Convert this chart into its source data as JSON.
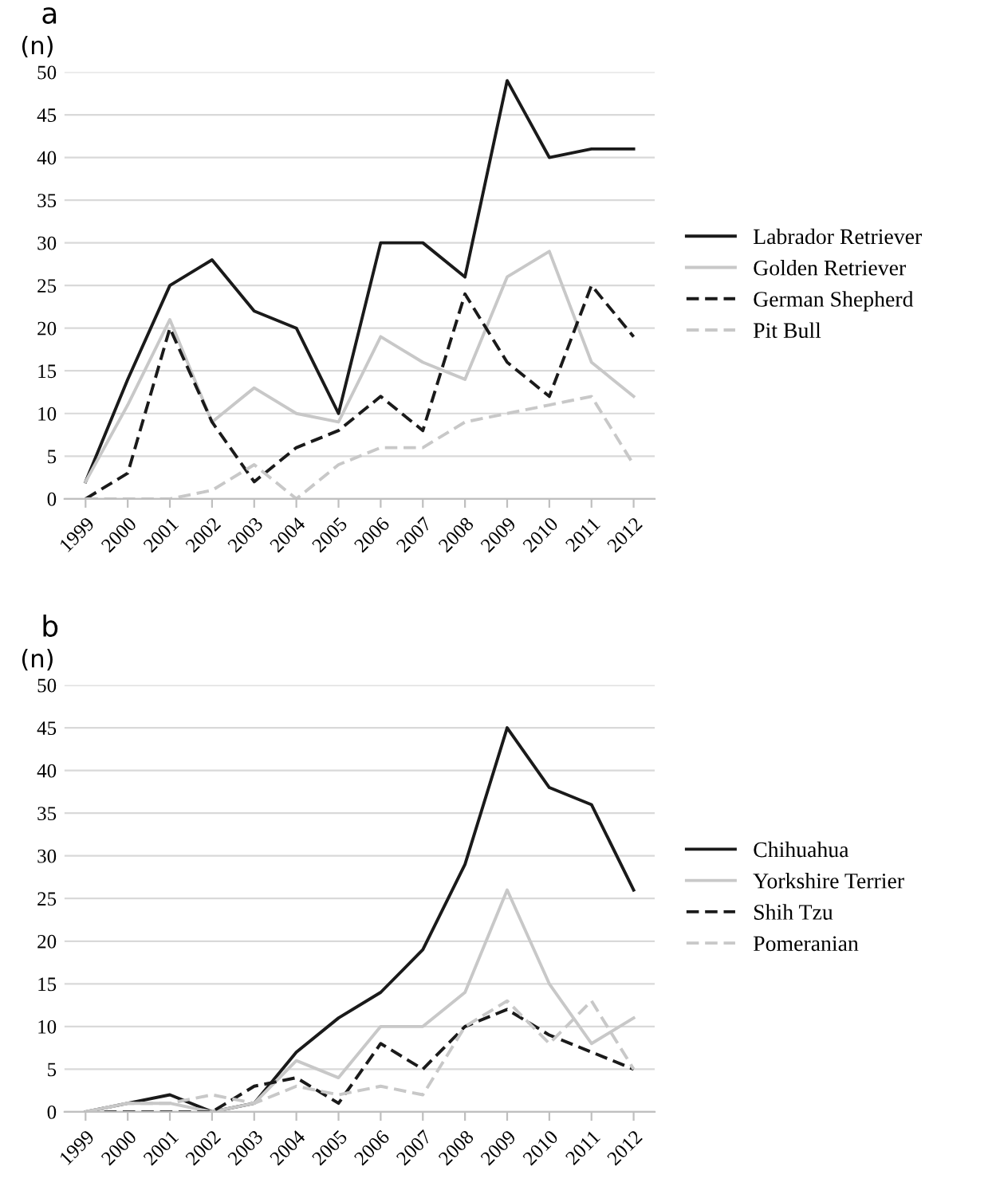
{
  "chart_data": [
    {
      "type": "line",
      "title": "a",
      "ylabel": "(n)",
      "categories": [
        "1999",
        "2000",
        "2001",
        "2002",
        "2003",
        "2004",
        "2005",
        "2006",
        "2007",
        "2008",
        "2009",
        "2010",
        "2011",
        "2012"
      ],
      "ylim": [
        0,
        50
      ],
      "yticks": [
        0,
        5,
        10,
        15,
        20,
        25,
        30,
        35,
        40,
        45,
        50
      ],
      "grid": "y",
      "legend": "right",
      "marker": "none",
      "series": [
        {
          "name": "Labrador Retriever",
          "color": "#1a1a1a",
          "line_style": "solid",
          "values": [
            2,
            14,
            25,
            28,
            22,
            20,
            10,
            30,
            30,
            26,
            49,
            40,
            41,
            41
          ]
        },
        {
          "name": "Golden Retriever",
          "color": "#c8c8c8",
          "line_style": "solid",
          "values": [
            2,
            11,
            21,
            9,
            13,
            10,
            9,
            19,
            16,
            14,
            26,
            29,
            16,
            12
          ]
        },
        {
          "name": "German Shepherd",
          "color": "#1a1a1a",
          "line_style": "dashed",
          "values": [
            0,
            3,
            20,
            9,
            2,
            6,
            8,
            12,
            8,
            24,
            16,
            12,
            25,
            19
          ]
        },
        {
          "name": "Pit Bull",
          "color": "#c8c8c8",
          "line_style": "dashed",
          "values": [
            0,
            0,
            0,
            1,
            4,
            0,
            4,
            6,
            6,
            9,
            10,
            11,
            12,
            4
          ]
        }
      ]
    },
    {
      "type": "line",
      "title": "b",
      "ylabel": "(n)",
      "categories": [
        "1999",
        "2000",
        "2001",
        "2002",
        "2003",
        "2004",
        "2005",
        "2006",
        "2007",
        "2008",
        "2009",
        "2010",
        "2011",
        "2012"
      ],
      "ylim": [
        0,
        50
      ],
      "yticks": [
        0,
        5,
        10,
        15,
        20,
        25,
        30,
        35,
        40,
        45,
        50
      ],
      "grid": "y",
      "legend": "right",
      "marker": "none",
      "series": [
        {
          "name": "Chihuahua",
          "color": "#1a1a1a",
          "line_style": "solid",
          "values": [
            0,
            1,
            2,
            0,
            1,
            7,
            11,
            14,
            19,
            29,
            45,
            38,
            36,
            26
          ]
        },
        {
          "name": "Yorkshire Terrier",
          "color": "#c8c8c8",
          "line_style": "solid",
          "values": [
            0,
            1,
            1,
            0,
            1,
            6,
            4,
            10,
            10,
            14,
            26,
            15,
            8,
            11
          ]
        },
        {
          "name": "Shih Tzu",
          "color": "#1a1a1a",
          "line_style": "dashed",
          "values": [
            0,
            0,
            0,
            0,
            3,
            4,
            1,
            8,
            5,
            10,
            12,
            9,
            7,
            5
          ]
        },
        {
          "name": "Pomeranian",
          "color": "#c8c8c8",
          "line_style": "dashed",
          "values": [
            0,
            1,
            1,
            2,
            1,
            3,
            2,
            3,
            2,
            10,
            13,
            8,
            13,
            5
          ]
        }
      ]
    }
  ]
}
